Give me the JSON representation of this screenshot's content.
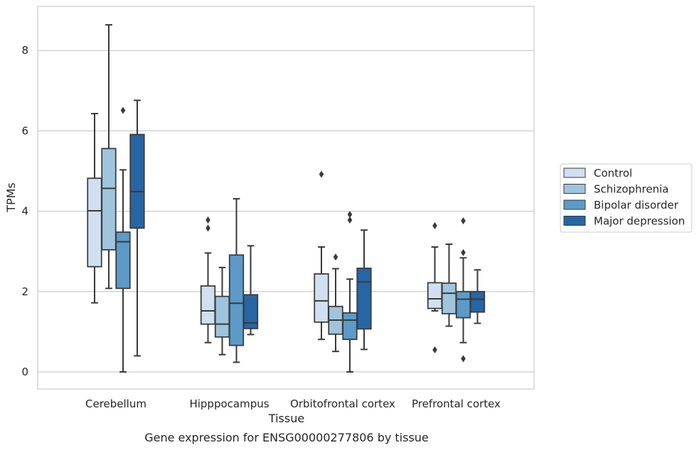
{
  "chart_data": {
    "type": "box",
    "title": "",
    "caption": "Gene expression for ENSG00000277806 by tissue",
    "xlabel": "Tissue",
    "ylabel": "TPMs",
    "ylim": [
      -0.4,
      9.2
    ],
    "yticks": [
      0,
      2,
      4,
      6,
      8
    ],
    "grid": "horizontal",
    "legend_position": "right",
    "categories": [
      "Cerebellum",
      "Hipppocampus",
      "Orbitofrontal cortex",
      "Prefrontal cortex"
    ],
    "series": [
      {
        "name": "Control",
        "color": "#d0e0f0",
        "boxes": [
          {
            "whisker_low": 1.72,
            "q1": 2.62,
            "median": 4.01,
            "q3": 4.82,
            "whisker_high": 6.43,
            "outliers": []
          },
          {
            "whisker_low": 0.73,
            "q1": 1.19,
            "median": 1.52,
            "q3": 2.14,
            "whisker_high": 2.96,
            "outliers": [
              3.58,
              3.78
            ]
          },
          {
            "whisker_low": 0.81,
            "q1": 1.24,
            "median": 1.77,
            "q3": 2.44,
            "whisker_high": 3.11,
            "outliers": [
              4.92
            ]
          },
          {
            "whisker_low": 1.52,
            "q1": 1.58,
            "median": 1.82,
            "q3": 2.22,
            "whisker_high": 3.11,
            "outliers": [
              0.55,
              3.64
            ]
          }
        ]
      },
      {
        "name": "Schizophrenia",
        "color": "#a0c4dd",
        "boxes": [
          {
            "whisker_low": 2.08,
            "q1": 3.04,
            "median": 4.57,
            "q3": 5.56,
            "whisker_high": 8.64,
            "outliers": []
          },
          {
            "whisker_low": 0.43,
            "q1": 0.87,
            "median": 1.19,
            "q3": 1.88,
            "whisker_high": 2.6,
            "outliers": []
          },
          {
            "whisker_low": 0.51,
            "q1": 0.94,
            "median": 1.29,
            "q3": 1.63,
            "whisker_high": 2.57,
            "outliers": [
              2.86
            ]
          },
          {
            "whisker_low": 1.14,
            "q1": 1.45,
            "median": 1.96,
            "q3": 2.21,
            "whisker_high": 3.18,
            "outliers": []
          }
        ]
      },
      {
        "name": "Bipolar disorder",
        "color": "#5b9ac9",
        "boxes": [
          {
            "whisker_low": 0.0,
            "q1": 2.08,
            "median": 3.24,
            "q3": 3.48,
            "whisker_high": 5.03,
            "outliers": [
              6.51
            ]
          },
          {
            "whisker_low": 0.24,
            "q1": 0.66,
            "median": 1.71,
            "q3": 2.91,
            "whisker_high": 4.31,
            "outliers": []
          },
          {
            "whisker_low": 0.0,
            "q1": 0.81,
            "median": 1.29,
            "q3": 1.47,
            "whisker_high": 2.31,
            "outliers": [
              3.78,
              3.92
            ]
          },
          {
            "whisker_low": 0.73,
            "q1": 1.35,
            "median": 1.81,
            "q3": 2.0,
            "whisker_high": 2.84,
            "outliers": [
              0.33,
              2.97,
              3.76
            ]
          }
        ]
      },
      {
        "name": "Major depression",
        "color": "#2765a4",
        "boxes": [
          {
            "whisker_low": 0.4,
            "q1": 3.58,
            "median": 4.49,
            "q3": 5.91,
            "whisker_high": 6.76,
            "outliers": []
          },
          {
            "whisker_low": 0.93,
            "q1": 1.08,
            "median": 1.22,
            "q3": 1.92,
            "whisker_high": 3.14,
            "outliers": []
          },
          {
            "whisker_low": 0.56,
            "q1": 1.07,
            "median": 2.24,
            "q3": 2.58,
            "whisker_high": 3.53,
            "outliers": []
          },
          {
            "whisker_low": 1.21,
            "q1": 1.49,
            "median": 1.81,
            "q3": 2.0,
            "whisker_high": 2.54,
            "outliers": []
          }
        ]
      }
    ]
  }
}
